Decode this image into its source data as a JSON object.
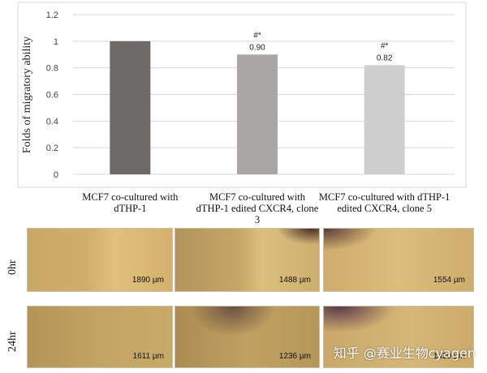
{
  "chart_data": {
    "type": "bar",
    "ylabel": "Folds of migratory ability",
    "ylim": [
      0,
      1.2
    ],
    "yticks": [
      0,
      0.2,
      0.4,
      0.6,
      0.8,
      1,
      1.2
    ],
    "categories": [
      [
        "MCF7 co-cultured with",
        "dTHP-1"
      ],
      [
        "MCF7 co-cultured with",
        "dTHP-1 edited CXCR4, clone",
        "3"
      ],
      [
        "MCF7 co-cultured with dTHP-1",
        "edited CXCR4, clone 5"
      ]
    ],
    "values": [
      1,
      0.9,
      0.82
    ],
    "data_labels": [
      "",
      "0.90",
      "0.82"
    ],
    "significance": [
      "",
      "#*",
      "#*"
    ],
    "bar_colors": [
      "#6e6a68",
      "#a9a7a6",
      "#cfcfcf"
    ],
    "grid": true
  },
  "micrographs": {
    "rows": [
      {
        "label": "0hr",
        "scales": [
          "1890 µm",
          "1488 µm",
          "1554 µm"
        ]
      },
      {
        "label": "24hr",
        "scales": [
          "1611 µm",
          "1236 µm",
          "1420 µm"
        ]
      }
    ]
  },
  "watermark": "知乎 @赛业生物cyagen"
}
